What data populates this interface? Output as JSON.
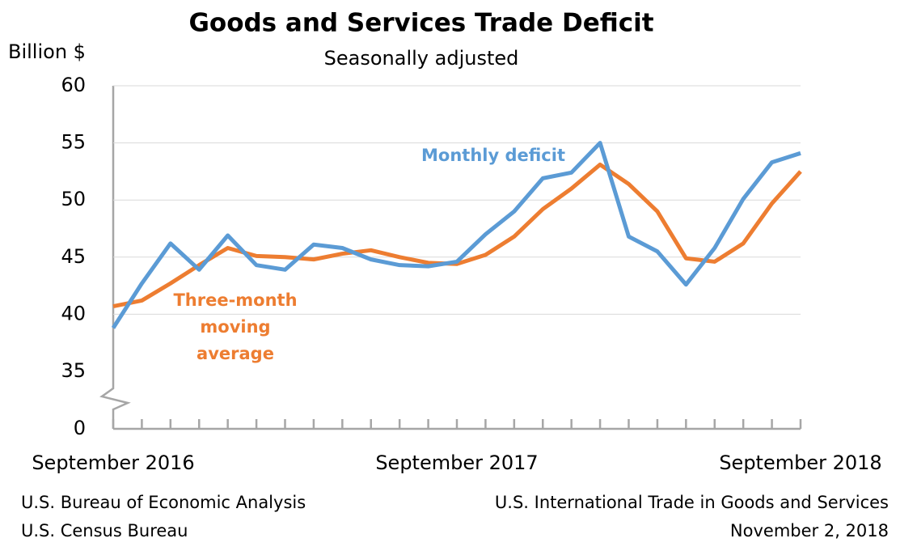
{
  "chart_data": {
    "type": "line",
    "title": "Goods and Services Trade Deficit",
    "subtitle": "Seasonally adjusted",
    "y_label": "Billion $",
    "categories": [
      "September 2016",
      null,
      null,
      null,
      null,
      null,
      null,
      null,
      null,
      null,
      null,
      null,
      "September 2017",
      null,
      null,
      null,
      null,
      null,
      null,
      null,
      null,
      null,
      null,
      null,
      "September 2018"
    ],
    "series": [
      {
        "name": "Monthly deficit",
        "color": "#5b9bd5",
        "values": [
          38.8,
          42.7,
          46.2,
          43.9,
          46.9,
          44.3,
          43.9,
          46.1,
          45.8,
          44.8,
          44.3,
          44.2,
          44.6,
          47.0,
          49.0,
          51.9,
          52.4,
          55.0,
          46.8,
          45.5,
          42.6,
          45.8,
          50.1,
          53.3,
          54.1
        ]
      },
      {
        "name": "Three-month moving average",
        "color": "#ed7d31",
        "values": [
          40.7,
          41.2,
          42.7,
          44.3,
          45.8,
          45.1,
          45.0,
          44.8,
          45.3,
          45.6,
          45.0,
          44.5,
          44.4,
          45.2,
          46.8,
          49.2,
          51.0,
          53.1,
          51.4,
          49.0,
          44.9,
          44.6,
          46.2,
          49.7,
          52.5
        ]
      }
    ],
    "ylim": [
      0,
      60
    ],
    "axis_break": [
      0,
      35
    ],
    "yticks": [
      0,
      35,
      40,
      45,
      50,
      55,
      60
    ],
    "grid": true,
    "footer_left": [
      "U.S. Bureau of Economic Analysis",
      "U.S. Census Bureau"
    ],
    "footer_right": [
      "U.S. International Trade in Goods and Services",
      "November 2, 2018"
    ]
  }
}
